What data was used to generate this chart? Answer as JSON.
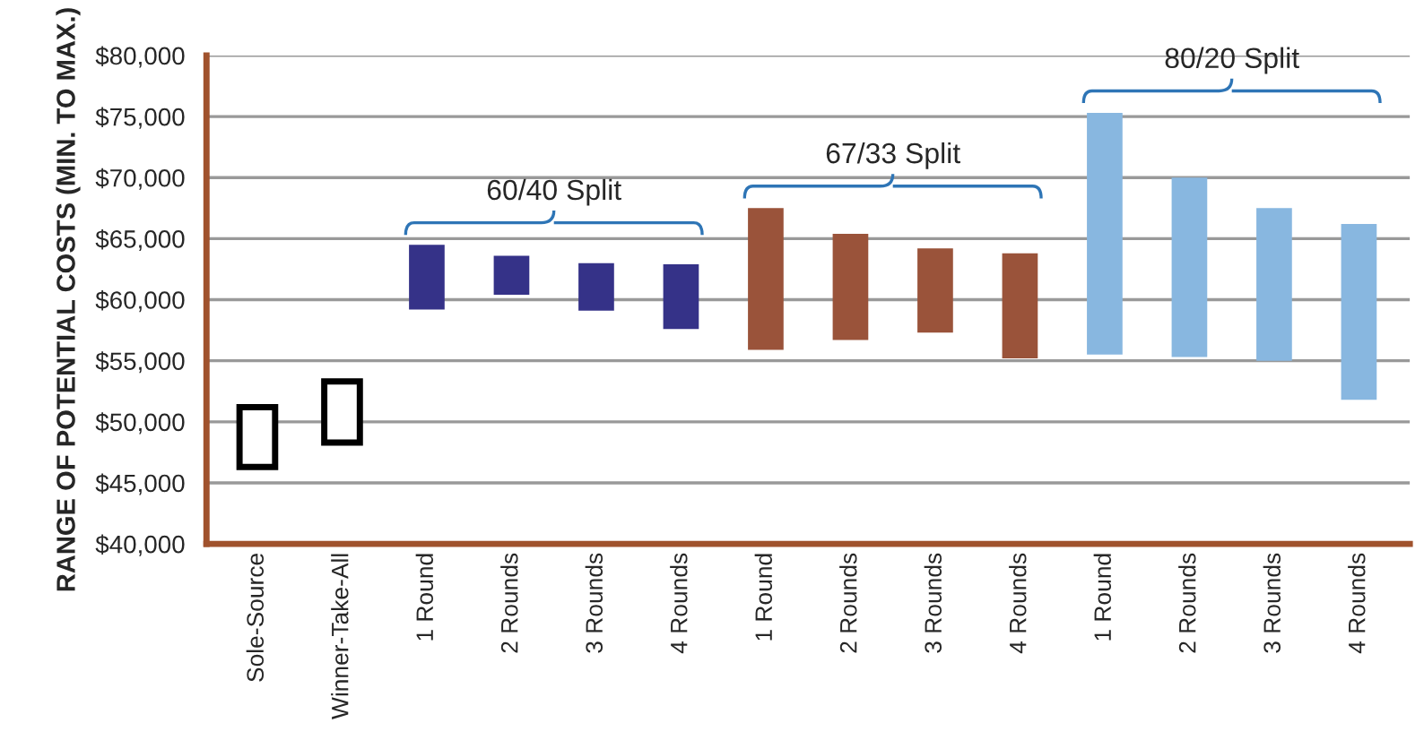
{
  "chart_data": {
    "type": "bar",
    "ylabel": "RANGE OF POTENTIAL COSTS (MIN. TO MAX.)",
    "categories": [
      "Sole-Source",
      "Winner-Take-All",
      "1 Round",
      "2 Rounds",
      "3 Rounds",
      "4 Rounds",
      "1 Round",
      "2 Rounds",
      "3 Rounds",
      "4 Rounds",
      "1 Round",
      "2 Rounds",
      "3 Rounds",
      "4 Rounds"
    ],
    "base": [
      46300,
      48300,
      59200,
      60400,
      59100,
      57600,
      55900,
      56700,
      57300,
      55200,
      55500,
      55300,
      55000,
      51800
    ],
    "values": [
      4900,
      5000,
      5300,
      3200,
      3900,
      5300,
      11600,
      8700,
      6900,
      8600,
      19800,
      14700,
      12500,
      14400
    ],
    "colors": [
      "#ffffff",
      "#ffffff",
      "#353288",
      "#353288",
      "#353288",
      "#353288",
      "#9a533a",
      "#9a533a",
      "#9a533a",
      "#9a533a",
      "#88b7e0",
      "#88b7e0",
      "#88b7e0",
      "#88b7e0"
    ],
    "annotations": [
      "60/40 Split",
      "67/33 Split",
      "80/20 Split"
    ],
    "ylim": [
      40000,
      80000
    ],
    "yticks": [
      {
        "value": 40000,
        "label": "$40,000"
      },
      {
        "value": 45000,
        "label": "$45,000"
      },
      {
        "value": 50000,
        "label": "$50,000"
      },
      {
        "value": 55000,
        "label": "$55,000"
      },
      {
        "value": 60000,
        "label": "$60,000"
      },
      {
        "value": 65000,
        "label": "$65,000"
      },
      {
        "value": 70000,
        "label": "$70,000"
      },
      {
        "value": 75000,
        "label": "$75,000"
      },
      {
        "value": 80000,
        "label": "$80,000"
      }
    ],
    "grid": "y"
  }
}
